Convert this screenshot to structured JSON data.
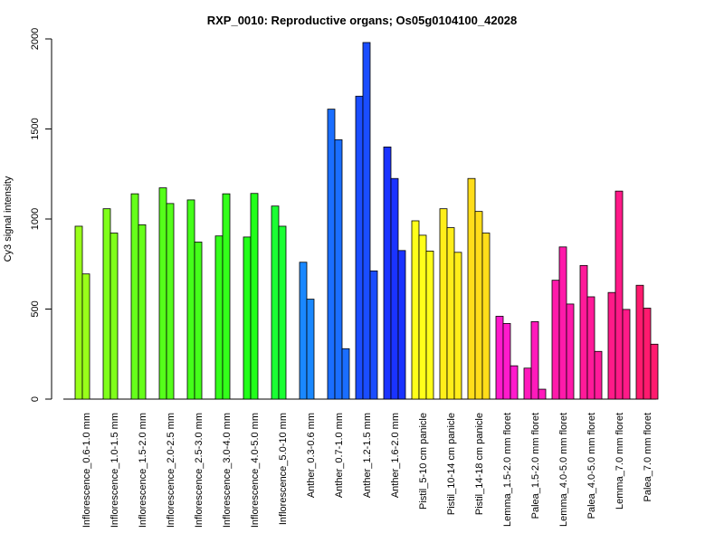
{
  "chart_data": {
    "type": "bar",
    "title": "RXP_0010: Reproductive organs; Os05g0104100_42028",
    "xlabel": "",
    "ylabel": "Cy3 signal intensity",
    "ylim": [
      0,
      2000
    ],
    "yticks": [
      0,
      500,
      1000,
      1500,
      2000
    ],
    "grid": false,
    "legend": "none",
    "groups": [
      {
        "label": "Inflorescence_0.6-1.0 mm",
        "color": "#99ff1a",
        "values": [
          960,
          695
        ]
      },
      {
        "label": "Inflorescence_1.0-1.5 mm",
        "color": "#7fff1a",
        "values": [
          1057,
          922
        ]
      },
      {
        "label": "Inflorescence_1.5-2.0 mm",
        "color": "#66ff1a",
        "values": [
          1140,
          968
        ]
      },
      {
        "label": "Inflorescence_2.0-2.5 mm",
        "color": "#55ff1a",
        "values": [
          1173,
          1086
        ]
      },
      {
        "label": "Inflorescence_2.5-3.0 mm",
        "color": "#44ff1a",
        "values": [
          1106,
          872
        ]
      },
      {
        "label": "Inflorescence_3.0-4.0 mm",
        "color": "#33ff1a",
        "values": [
          906,
          1140
        ]
      },
      {
        "label": "Inflorescence_4.0-5.0 mm",
        "color": "#22ff1a",
        "values": [
          900,
          1142
        ]
      },
      {
        "label": "Inflorescence_5.0-10 mm",
        "color": "#1aff33",
        "values": [
          1072,
          960
        ]
      },
      {
        "label": "Anther_0.3-0.6 mm",
        "color": "#1a88ff",
        "values": [
          760,
          555
        ]
      },
      {
        "label": "Anther_0.7-1.0 mm",
        "color": "#1a6eff",
        "values": [
          1610,
          1440,
          280
        ]
      },
      {
        "label": "Anther_1.2-1.5 mm",
        "color": "#1a4dff",
        "values": [
          1682,
          1980,
          712
        ]
      },
      {
        "label": "Anther_1.6-2.0 mm",
        "color": "#1a33ff",
        "values": [
          1400,
          1225,
          825
        ]
      },
      {
        "label": "Pistil_5-10 cm panicle",
        "color": "#ffff1a",
        "values": [
          990,
          910,
          822
        ]
      },
      {
        "label": "Pistil_10-14 cm panicle",
        "color": "#ffee1a",
        "values": [
          1057,
          952,
          815
        ]
      },
      {
        "label": "Pistil_14-18 cm panicle",
        "color": "#ffdd1a",
        "values": [
          1225,
          1042,
          922
        ]
      },
      {
        "label": "Lemma_1.5-2.0 mm floret",
        "color": "#ff1acc",
        "values": [
          460,
          420,
          185
        ]
      },
      {
        "label": "Palea_1.5-2.0 mm floret",
        "color": "#ff1abb",
        "values": [
          172,
          430,
          55
        ]
      },
      {
        "label": "Lemma_4.0-5.0 mm floret",
        "color": "#ff1aaa",
        "values": [
          660,
          845,
          528
        ]
      },
      {
        "label": "Palea_4.0-5.0 mm floret",
        "color": "#ff1a99",
        "values": [
          742,
          568,
          265
        ]
      },
      {
        "label": "Lemma_7.0 mm floret",
        "color": "#ff1a88",
        "values": [
          592,
          1155,
          498
        ]
      },
      {
        "label": "Palea_7.0 mm floret",
        "color": "#ff1a6e",
        "values": [
          632,
          505,
          305
        ]
      }
    ]
  }
}
